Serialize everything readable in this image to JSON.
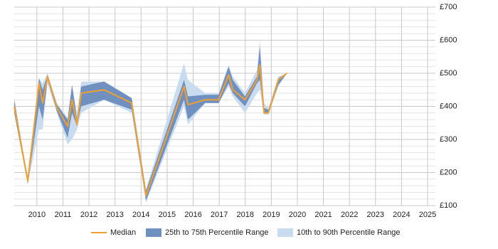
{
  "chart_data": {
    "type": "band-line",
    "x": [
      2009.13,
      2009.65,
      2010.08,
      2010.22,
      2010.41,
      2010.77,
      2011.18,
      2011.35,
      2011.54,
      2011.7,
      2012.58,
      2013.64,
      2014.19,
      2015.65,
      2015.8,
      2016.46,
      2016.98,
      2017.36,
      2017.52,
      2017.99,
      2018.45,
      2018.56,
      2018.72,
      2018.89,
      2019.27,
      2019.6
    ],
    "series": [
      {
        "name": "Median",
        "color": "#f0a030",
        "values": [
          400,
          175,
          470,
          410,
          490,
          395,
          340,
          420,
          345,
          440,
          450,
          410,
          130,
          460,
          405,
          420,
          420,
          495,
          450,
          420,
          480,
          525,
          380,
          380,
          480,
          500
        ]
      },
      {
        "name": "25th to 75th Percentile Range",
        "color": "#7090c0",
        "lower": [
          380,
          165,
          400,
          360,
          480,
          385,
          305,
          380,
          340,
          400,
          420,
          390,
          115,
          420,
          360,
          410,
          410,
          470,
          440,
          400,
          470,
          480,
          380,
          380,
          465,
          500
        ],
        "upper": [
          420,
          180,
          485,
          450,
          495,
          405,
          360,
          465,
          360,
          460,
          475,
          425,
          145,
          480,
          430,
          435,
          435,
          520,
          480,
          430,
          490,
          580,
          395,
          390,
          485,
          500
        ]
      },
      {
        "name": "10th to 90th Percentile Range",
        "color": "#c9dbef",
        "lower": [
          380,
          165,
          330,
          330,
          470,
          380,
          285,
          300,
          330,
          380,
          420,
          380,
          110,
          400,
          345,
          410,
          410,
          460,
          430,
          380,
          440,
          450,
          375,
          375,
          460,
          500
        ],
        "upper": [
          425,
          180,
          485,
          470,
          500,
          410,
          365,
          465,
          380,
          475,
          475,
          425,
          150,
          530,
          480,
          440,
          440,
          525,
          490,
          440,
          510,
          600,
          410,
          395,
          490,
          500
        ]
      }
    ],
    "xlim": [
      2009.13,
      2025.3
    ],
    "xticks": [
      2010,
      2011,
      2012,
      2013,
      2014,
      2015,
      2016,
      2017,
      2018,
      2019,
      2020,
      2021,
      2022,
      2023,
      2024,
      2025
    ],
    "ylim": [
      100,
      700
    ],
    "yticks": [
      {
        "value": 100,
        "label": "£100"
      },
      {
        "value": 200,
        "label": "£200"
      },
      {
        "value": 300,
        "label": "£300"
      },
      {
        "value": 400,
        "label": "£400"
      },
      {
        "value": 500,
        "label": "£500"
      },
      {
        "value": 600,
        "label": "£600"
      },
      {
        "value": 700,
        "label": "£700"
      }
    ],
    "grid": true,
    "legend": "bottom"
  }
}
